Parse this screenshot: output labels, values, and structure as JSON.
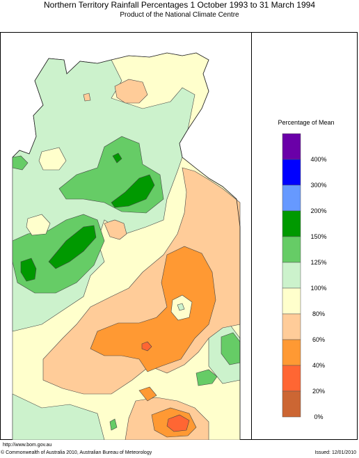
{
  "header": {
    "title": "Northern Territory Rainfall Percentages 1 October 1993 to 31 March 1994",
    "subtitle": "Product of the National Climate Centre"
  },
  "legend": {
    "title": "Percentage of Mean",
    "classes": [
      {
        "label": "400%",
        "color": "#6a00a8"
      },
      {
        "label": "300%",
        "color": "#0000ff"
      },
      {
        "label": "200%",
        "color": "#6699ff"
      },
      {
        "label": "150%",
        "color": "#009900"
      },
      {
        "label": "125%",
        "color": "#66cc66"
      },
      {
        "label": "100%",
        "color": "#ccf2cc"
      },
      {
        "label": "80%",
        "color": "#ffffcc"
      },
      {
        "label": "60%",
        "color": "#ffcc99"
      },
      {
        "label": "40%",
        "color": "#ff9933"
      },
      {
        "label": "20%",
        "color": "#ff6633"
      },
      {
        "label": "0%",
        "color": "#cc6633"
      }
    ]
  },
  "footer": {
    "url": "http://www.bom.gov.au",
    "copyright": "© Commonwealth of Australia 2010, Australian Bureau of Meteorology",
    "issued": "Issued: 12/01/2010"
  }
}
